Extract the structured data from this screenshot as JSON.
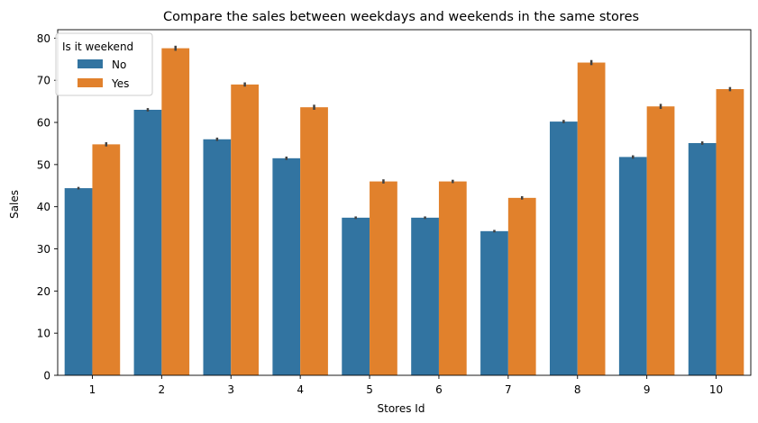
{
  "chart_data": {
    "type": "bar",
    "title": "Compare the sales between weekdays and weekends in the same stores",
    "xlabel": "Stores Id",
    "ylabel": "Sales",
    "categories": [
      "1",
      "2",
      "3",
      "4",
      "5",
      "6",
      "7",
      "8",
      "9",
      "10"
    ],
    "ylim": [
      0,
      82
    ],
    "yticks": [
      0,
      10,
      20,
      30,
      40,
      50,
      60,
      70,
      80
    ],
    "grid": false,
    "legend": {
      "title": "Is it weekend",
      "placement": "top-left"
    },
    "series": [
      {
        "name": "No",
        "color": "#3274a1",
        "values": [
          44.4,
          63.0,
          56.0,
          51.5,
          37.4,
          37.4,
          34.2,
          60.2,
          51.8,
          55.1
        ],
        "error": [
          0.3,
          0.4,
          0.4,
          0.4,
          0.3,
          0.3,
          0.3,
          0.4,
          0.4,
          0.4
        ]
      },
      {
        "name": "Yes",
        "color": "#e1812c",
        "values": [
          54.8,
          77.6,
          69.0,
          63.6,
          46.0,
          46.0,
          42.1,
          74.2,
          63.8,
          67.9
        ],
        "error": [
          0.5,
          0.6,
          0.5,
          0.6,
          0.5,
          0.4,
          0.4,
          0.6,
          0.6,
          0.5
        ]
      }
    ]
  }
}
